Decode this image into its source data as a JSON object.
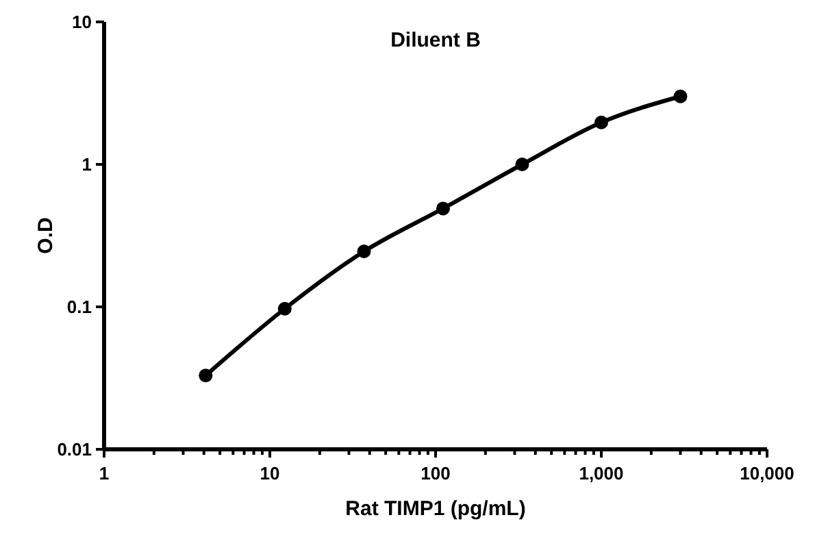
{
  "chart_data": {
    "type": "line",
    "title": "Diluent B",
    "xlabel": "Rat TIMP1 (pg/mL)",
    "ylabel": "O.D",
    "log": "xy",
    "marker": "circle",
    "line_style": "solid",
    "grid": false,
    "x": [
      4.1,
      12.3,
      37,
      111,
      333,
      1000,
      3000
    ],
    "series": [
      {
        "color": "#000000",
        "values": [
          0.033,
          0.097,
          0.245,
          0.49,
          1.0,
          1.97,
          3.0
        ]
      }
    ],
    "xlim": [
      1,
      10000
    ],
    "ylim": [
      0.01,
      10
    ],
    "xticks": [
      {
        "value": 1,
        "label": "1"
      },
      {
        "value": 2,
        "label": null
      },
      {
        "value": 3,
        "label": null
      },
      {
        "value": 4,
        "label": null
      },
      {
        "value": 5,
        "label": null
      },
      {
        "value": 6,
        "label": null
      },
      {
        "value": 7,
        "label": null
      },
      {
        "value": 8,
        "label": null
      },
      {
        "value": 9,
        "label": null
      },
      {
        "value": 10,
        "label": "10"
      },
      {
        "value": 20,
        "label": null
      },
      {
        "value": 30,
        "label": null
      },
      {
        "value": 40,
        "label": null
      },
      {
        "value": 50,
        "label": null
      },
      {
        "value": 60,
        "label": null
      },
      {
        "value": 70,
        "label": null
      },
      {
        "value": 80,
        "label": null
      },
      {
        "value": 90,
        "label": null
      },
      {
        "value": 100,
        "label": "100"
      },
      {
        "value": 200,
        "label": null
      },
      {
        "value": 300,
        "label": null
      },
      {
        "value": 400,
        "label": null
      },
      {
        "value": 500,
        "label": null
      },
      {
        "value": 600,
        "label": null
      },
      {
        "value": 700,
        "label": null
      },
      {
        "value": 800,
        "label": null
      },
      {
        "value": 900,
        "label": null
      },
      {
        "value": 1000,
        "label": "1,000"
      },
      {
        "value": 2000,
        "label": null
      },
      {
        "value": 3000,
        "label": null
      },
      {
        "value": 4000,
        "label": null
      },
      {
        "value": 5000,
        "label": null
      },
      {
        "value": 6000,
        "label": null
      },
      {
        "value": 7000,
        "label": null
      },
      {
        "value": 8000,
        "label": null
      },
      {
        "value": 9000,
        "label": null
      },
      {
        "value": 10000,
        "label": "10,000"
      }
    ],
    "yticks": [
      {
        "value": 0.01,
        "label": "0.01"
      },
      {
        "value": 0.1,
        "label": "0.1"
      },
      {
        "value": 1,
        "label": "1"
      },
      {
        "value": 10,
        "label": "10"
      }
    ]
  }
}
